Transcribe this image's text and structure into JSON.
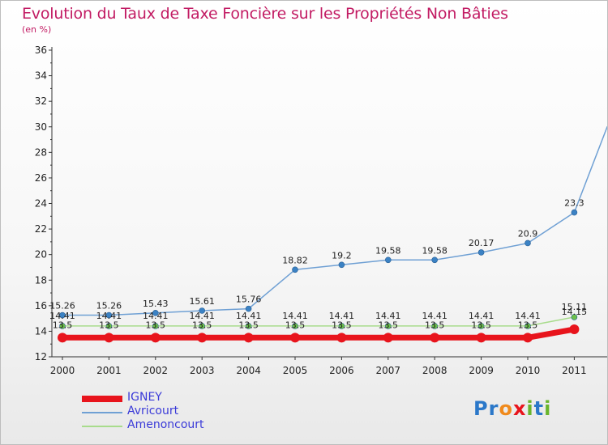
{
  "title": "Evolution du Taux de Taxe Foncière sur les Propriétés Non Bâties",
  "unit_label": "(en %)",
  "logo_text": "Proxiti",
  "chart_data": {
    "type": "line",
    "title": "Evolution du Taux de Taxe Foncière sur les Propriétés Non Bâties",
    "ylabel": "(en %)",
    "xlabel": "",
    "ylim": [
      12,
      36
    ],
    "yticks": [
      12,
      14,
      16,
      18,
      20,
      22,
      24,
      26,
      28,
      30,
      32,
      34,
      36
    ],
    "categories": [
      "2000",
      "2001",
      "2002",
      "2003",
      "2004",
      "2005",
      "2006",
      "2007",
      "2008",
      "2009",
      "2010",
      "2011"
    ],
    "series": [
      {
        "name": "Avricourt",
        "color": "#6fa0d4",
        "marker_color": "#3b82c4",
        "values": [
          15.26,
          15.26,
          15.43,
          15.61,
          15.76,
          18.82,
          19.2,
          19.58,
          19.58,
          20.17,
          20.9,
          23.3
        ],
        "labels": [
          "15.26",
          "15.26",
          "15.43",
          "15.61",
          "15.76",
          "18.82",
          "19.2",
          "19.58",
          "19.58",
          "20.17",
          "20.9",
          "23.3"
        ],
        "extra_value": 30
      },
      {
        "name": "Amenoncourt",
        "color": "#a8dc8c",
        "marker_color": "#6cc04a",
        "values": [
          14.41,
          14.41,
          14.41,
          14.41,
          14.41,
          14.41,
          14.41,
          14.41,
          14.41,
          14.41,
          14.41,
          15.11
        ],
        "labels": [
          "14.41",
          "14.41",
          "14.41",
          "14.41",
          "14.41",
          "14.41",
          "14.41",
          "14.41",
          "14.41",
          "14.41",
          "14.41",
          "15.11"
        ]
      },
      {
        "name": "IGNEY",
        "color": "#e8141c",
        "marker_color": "#e8141c",
        "values": [
          13.5,
          13.5,
          13.5,
          13.5,
          13.5,
          13.5,
          13.5,
          13.5,
          13.5,
          13.5,
          13.5,
          14.15
        ],
        "labels": [
          "13.5",
          "13.5",
          "13.5",
          "13.5",
          "13.5",
          "13.5",
          "13.5",
          "13.5",
          "13.5",
          "13.5",
          "13.5",
          "14.15"
        ]
      }
    ],
    "legend": [
      "IGNEY",
      "Avricourt",
      "Amenoncourt"
    ]
  }
}
